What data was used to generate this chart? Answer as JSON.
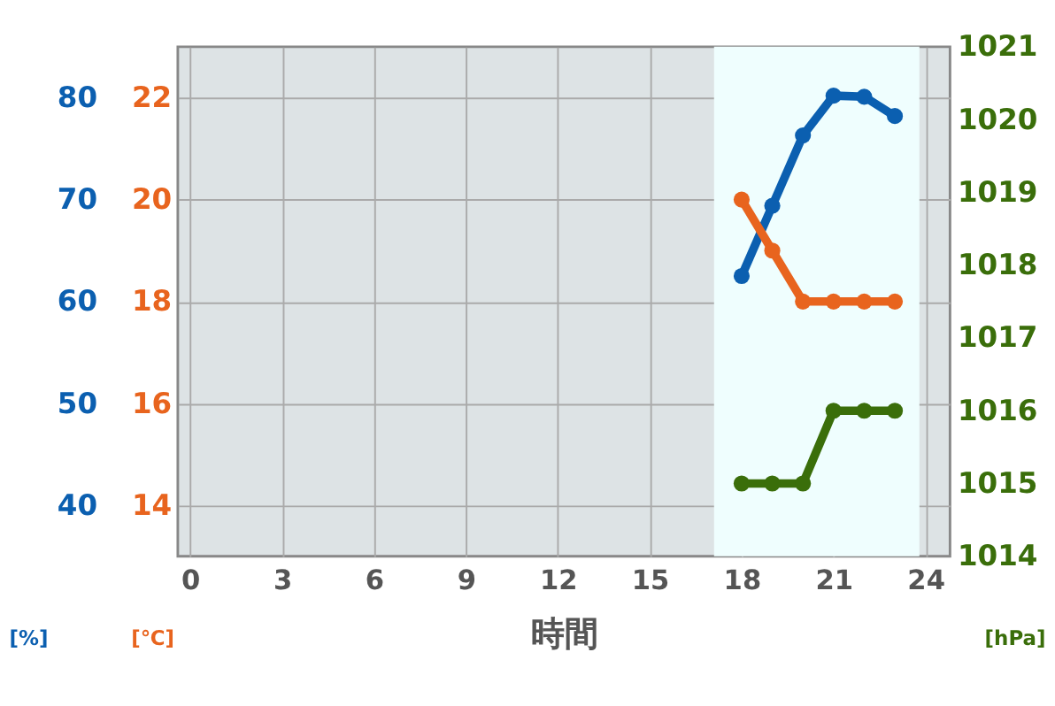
{
  "chart_data": {
    "type": "line",
    "xlabel": "時間",
    "ylabel": "[%]",
    "y2label": "[℃]",
    "y3label": "[hPa]",
    "x": [
      18,
      19,
      20,
      21,
      22,
      23
    ],
    "xlim": [
      -0.4,
      24.8
    ],
    "xticks": [
      0,
      3,
      6,
      9,
      12,
      15,
      18,
      21,
      24
    ],
    "ylim": [
      35,
      85
    ],
    "yticks": [
      40,
      50,
      60,
      70,
      80
    ],
    "y2lim": [
      13,
      23
    ],
    "y2ticks": [
      14,
      16,
      18,
      20,
      22
    ],
    "y3lim": [
      1014,
      1021
    ],
    "y3ticks": [
      1014,
      1015,
      1016,
      1017,
      1018,
      1019,
      1020,
      1021
    ],
    "series": [
      {
        "color": "#0b5fb0",
        "axis": "y",
        "values": [
          62.5,
          69.4,
          76.3,
          80.2,
          80.1,
          78.2
        ]
      },
      {
        "color": "#e8641e",
        "axis": "y2",
        "values": [
          20,
          19,
          18,
          18,
          18,
          18
        ]
      },
      {
        "color": "#3a6e0a",
        "axis": "y3",
        "values": [
          1015,
          1015,
          1015,
          1016,
          1016,
          1016
        ]
      }
    ],
    "bands": [
      {
        "axis": "x",
        "from": 17.1,
        "to": 23.8,
        "color": "#effefe"
      }
    ],
    "grid": true,
    "marker": "circle",
    "line_style": "solid"
  }
}
